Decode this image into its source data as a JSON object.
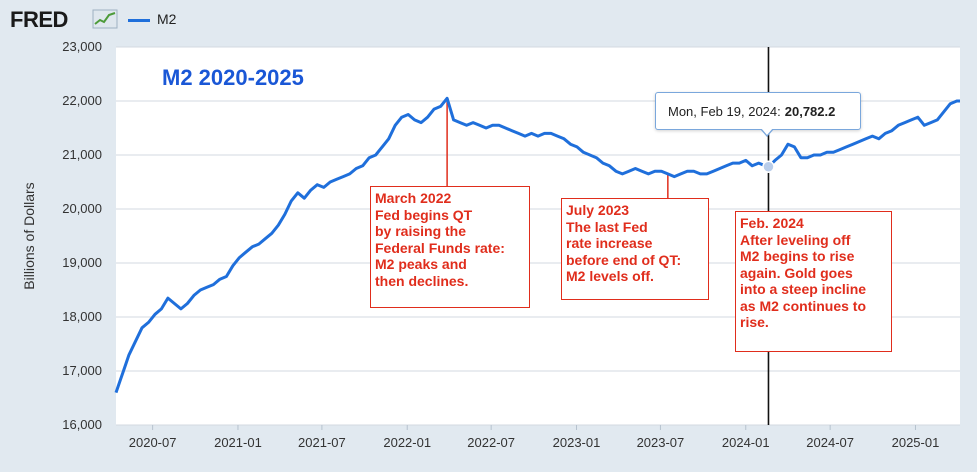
{
  "header": {
    "logo_text": "FRED",
    "legend_label": "M2"
  },
  "colors": {
    "background": "#e1e9f0",
    "plot_background": "#ffffff",
    "series": "#1f6fdb",
    "annotation": "#e02d1c",
    "title": "#1a57d6"
  },
  "tooltip": {
    "date": "Mon, Feb 19, 2024:",
    "value": "20,782.2"
  },
  "annotations": [
    {
      "text": "March 2022\nFed begins QT\nby raising the\nFederal Funds rate:\nM2 peaks and\nthen declines."
    },
    {
      "text": "July 2023\nThe last Fed\nrate increase\nbefore end of QT:\nM2 levels off."
    },
    {
      "text": "Feb. 2024\nAfter leveling off\nM2 begins to rise\nagain. Gold goes\ninto a steep incline\nas M2 continues to\nrise."
    }
  ],
  "chart_data": {
    "type": "line",
    "title": "M2 2020-2025",
    "xlabel": "",
    "ylabel": "Billions of Dollars",
    "ylim": [
      16000,
      23000
    ],
    "y_ticks": [
      16000,
      17000,
      18000,
      19000,
      20000,
      21000,
      22000,
      23000
    ],
    "y_tick_labels": [
      "16,000",
      "17,000",
      "18,000",
      "19,000",
      "20,000",
      "21,000",
      "22,000",
      "23,000"
    ],
    "x_tick_labels": [
      "2020-07",
      "2021-01",
      "2021-07",
      "2022-01",
      "2022-07",
      "2023-01",
      "2023-07",
      "2024-01",
      "2024-07",
      "2025-01"
    ],
    "xlim": [
      "2020-04-13",
      "2025-04-07"
    ],
    "grid": "horizontal",
    "legend": "top-left",
    "vertical_marker": "2024-02-19",
    "series": [
      {
        "name": "M2",
        "x": [
          "2020-04-13",
          "2020-04-27",
          "2020-05-11",
          "2020-05-25",
          "2020-06-08",
          "2020-06-22",
          "2020-07-06",
          "2020-07-20",
          "2020-08-03",
          "2020-08-17",
          "2020-08-31",
          "2020-09-14",
          "2020-09-28",
          "2020-10-12",
          "2020-10-26",
          "2020-11-09",
          "2020-11-23",
          "2020-12-07",
          "2020-12-21",
          "2021-01-04",
          "2021-01-18",
          "2021-02-01",
          "2021-02-15",
          "2021-03-01",
          "2021-03-15",
          "2021-03-29",
          "2021-04-12",
          "2021-04-26",
          "2021-05-10",
          "2021-05-24",
          "2021-06-07",
          "2021-06-21",
          "2021-07-05",
          "2021-07-19",
          "2021-08-02",
          "2021-08-16",
          "2021-08-30",
          "2021-09-13",
          "2021-09-27",
          "2021-10-11",
          "2021-10-25",
          "2021-11-08",
          "2021-11-22",
          "2021-12-06",
          "2021-12-20",
          "2022-01-03",
          "2022-01-17",
          "2022-01-31",
          "2022-02-14",
          "2022-02-28",
          "2022-03-14",
          "2022-03-28",
          "2022-04-11",
          "2022-04-25",
          "2022-05-09",
          "2022-05-23",
          "2022-06-06",
          "2022-06-20",
          "2022-07-04",
          "2022-07-18",
          "2022-08-01",
          "2022-08-15",
          "2022-08-29",
          "2022-09-12",
          "2022-09-26",
          "2022-10-10",
          "2022-10-24",
          "2022-11-07",
          "2022-11-21",
          "2022-12-05",
          "2022-12-19",
          "2023-01-02",
          "2023-01-16",
          "2023-01-30",
          "2023-02-13",
          "2023-02-27",
          "2023-03-13",
          "2023-03-27",
          "2023-04-10",
          "2023-04-24",
          "2023-05-08",
          "2023-05-22",
          "2023-06-05",
          "2023-06-19",
          "2023-07-03",
          "2023-07-17",
          "2023-07-31",
          "2023-08-14",
          "2023-08-28",
          "2023-09-11",
          "2023-09-25",
          "2023-10-09",
          "2023-10-23",
          "2023-11-06",
          "2023-11-20",
          "2023-12-04",
          "2023-12-18",
          "2024-01-01",
          "2024-01-15",
          "2024-01-29",
          "2024-02-12",
          "2024-02-19",
          "2024-03-04",
          "2024-03-18",
          "2024-04-01",
          "2024-04-15",
          "2024-04-29",
          "2024-05-13",
          "2024-05-27",
          "2024-06-10",
          "2024-06-24",
          "2024-07-08",
          "2024-07-22",
          "2024-08-05",
          "2024-08-19",
          "2024-09-02",
          "2024-09-16",
          "2024-09-30",
          "2024-10-14",
          "2024-10-28",
          "2024-11-11",
          "2024-11-25",
          "2024-12-09",
          "2024-12-23",
          "2025-01-06",
          "2025-01-20",
          "2025-02-03",
          "2025-02-17",
          "2025-03-03",
          "2025-03-17",
          "2025-03-31",
          "2025-04-07"
        ],
        "y": [
          16600,
          16950,
          17300,
          17550,
          17800,
          17900,
          18050,
          18150,
          18350,
          18250,
          18150,
          18250,
          18400,
          18500,
          18550,
          18600,
          18700,
          18750,
          18950,
          19100,
          19200,
          19300,
          19350,
          19450,
          19550,
          19700,
          19900,
          20150,
          20300,
          20200,
          20350,
          20450,
          20400,
          20500,
          20550,
          20600,
          20650,
          20750,
          20800,
          20950,
          21000,
          21150,
          21300,
          21550,
          21700,
          21750,
          21650,
          21600,
          21700,
          21850,
          21900,
          22050,
          21650,
          21600,
          21550,
          21600,
          21550,
          21500,
          21550,
          21550,
          21500,
          21450,
          21400,
          21350,
          21400,
          21350,
          21400,
          21400,
          21350,
          21300,
          21200,
          21150,
          21050,
          21000,
          20950,
          20850,
          20800,
          20700,
          20650,
          20700,
          20750,
          20700,
          20650,
          20700,
          20700,
          20650,
          20600,
          20650,
          20700,
          20700,
          20650,
          20650,
          20700,
          20750,
          20800,
          20850,
          20850,
          20900,
          20800,
          20850,
          20800,
          20782.2,
          20900,
          21000,
          21200,
          21150,
          20950,
          20950,
          21000,
          21000,
          21050,
          21050,
          21100,
          21150,
          21200,
          21250,
          21300,
          21350,
          21300,
          21400,
          21450,
          21550,
          21600,
          21650,
          21700,
          21550,
          21600,
          21650,
          21800,
          21950,
          22000,
          22000
        ]
      }
    ]
  }
}
